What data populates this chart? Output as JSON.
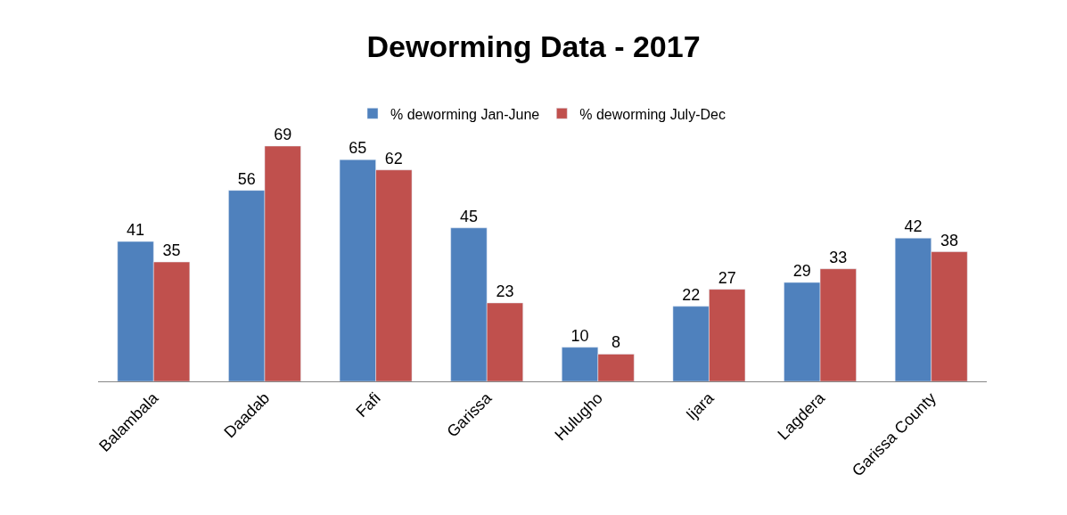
{
  "chart_data": {
    "type": "bar",
    "title": "Deworming Data - 2017",
    "categories": [
      "Balambala",
      "Daadab",
      "Fafi",
      "Garissa",
      "Hulugho",
      "Ijara",
      "Lagdera",
      "Garissa County"
    ],
    "series": [
      {
        "name": "% deworming Jan-June",
        "color": "#4f81bd",
        "values": [
          41,
          56,
          65,
          45,
          10,
          22,
          29,
          42
        ]
      },
      {
        "name": "% deworming July-Dec",
        "color": "#c0504d",
        "values": [
          35,
          69,
          62,
          23,
          8,
          27,
          33,
          38
        ]
      }
    ],
    "data_labels": true,
    "legend": "top",
    "tick_labels": "x"
  }
}
